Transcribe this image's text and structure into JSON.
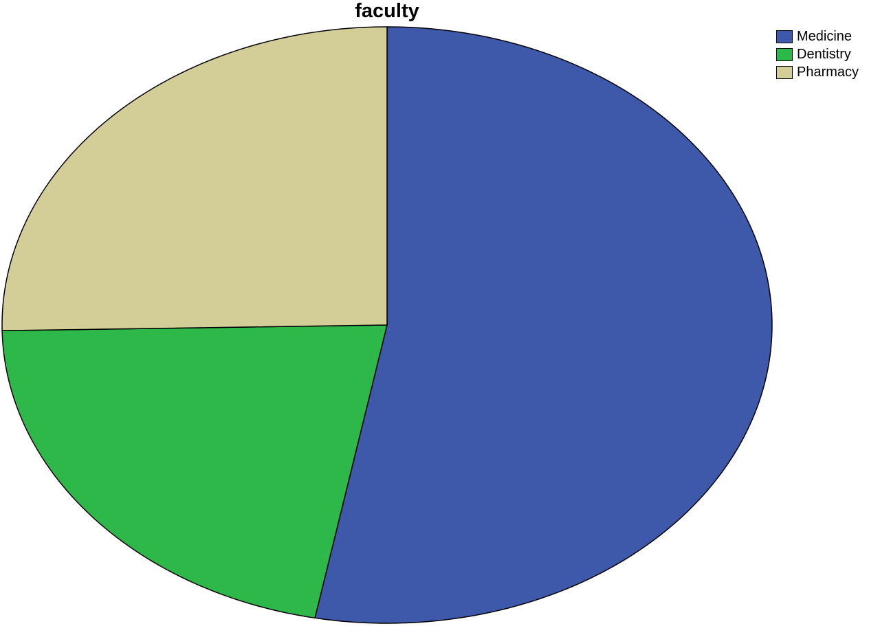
{
  "chart_data": {
    "type": "pie",
    "title": "faculty",
    "legend_position": "top-right",
    "slices": [
      {
        "label": "Medicine",
        "value": 53.0,
        "color": "#3e58aa"
      },
      {
        "label": "Dentistry",
        "value": 21.7,
        "color": "#2eb84a"
      },
      {
        "label": "Pharmacy",
        "value": 25.3,
        "color": "#d3ce98"
      }
    ]
  }
}
